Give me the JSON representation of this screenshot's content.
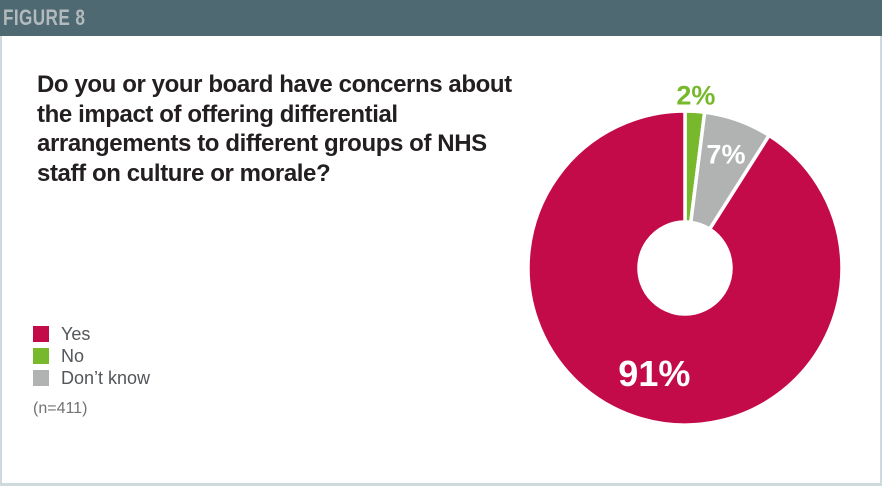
{
  "header": {
    "label": "FIGURE 8"
  },
  "title": {
    "full": "Do you or your board have concerns about the impact of offering differential arrangements to different groups of NHS staff on culture or morale?",
    "lines": [
      "Do you or your board have concerns about",
      "the impact of offering differential",
      "arrangements to different groups of NHS",
      "staff on culture or morale?"
    ]
  },
  "legend": {
    "items": [
      {
        "label": "Yes",
        "color": "#c30b49"
      },
      {
        "label": "No",
        "color": "#78b82c"
      },
      {
        "label": "Don’t know",
        "color": "#b1b3b3"
      }
    ]
  },
  "sample_note": "(n=411)",
  "colors": {
    "header_bar": "#4e6971",
    "header_text": "#b3babd",
    "title_text": "#231f20",
    "legend_text": "#53565a",
    "note_text": "#6f7275",
    "border": "#cfdade",
    "yes": "#c30b49",
    "no": "#78b82c",
    "dont_know": "#b1b3b3"
  },
  "chart_data": {
    "type": "pie",
    "subtype": "donut",
    "title": "Do you or your board have concerns about the impact of offering differential arrangements to different groups of NHS staff on culture or morale?",
    "labels": [
      "No",
      "Don’t know",
      "Yes"
    ],
    "values": [
      2,
      7,
      91
    ],
    "data_labels": [
      "2%",
      "7%",
      "91%"
    ],
    "colors": [
      "#78b82c",
      "#b1b3b3",
      "#c30b49"
    ],
    "start_angle_deg": 0,
    "direction": "clockwise",
    "donut_hole_ratio": 0.29,
    "legend_position": "left",
    "legend_order": [
      "Yes",
      "No",
      "Don’t know"
    ],
    "n_label": "(n=411)",
    "n": 411
  }
}
